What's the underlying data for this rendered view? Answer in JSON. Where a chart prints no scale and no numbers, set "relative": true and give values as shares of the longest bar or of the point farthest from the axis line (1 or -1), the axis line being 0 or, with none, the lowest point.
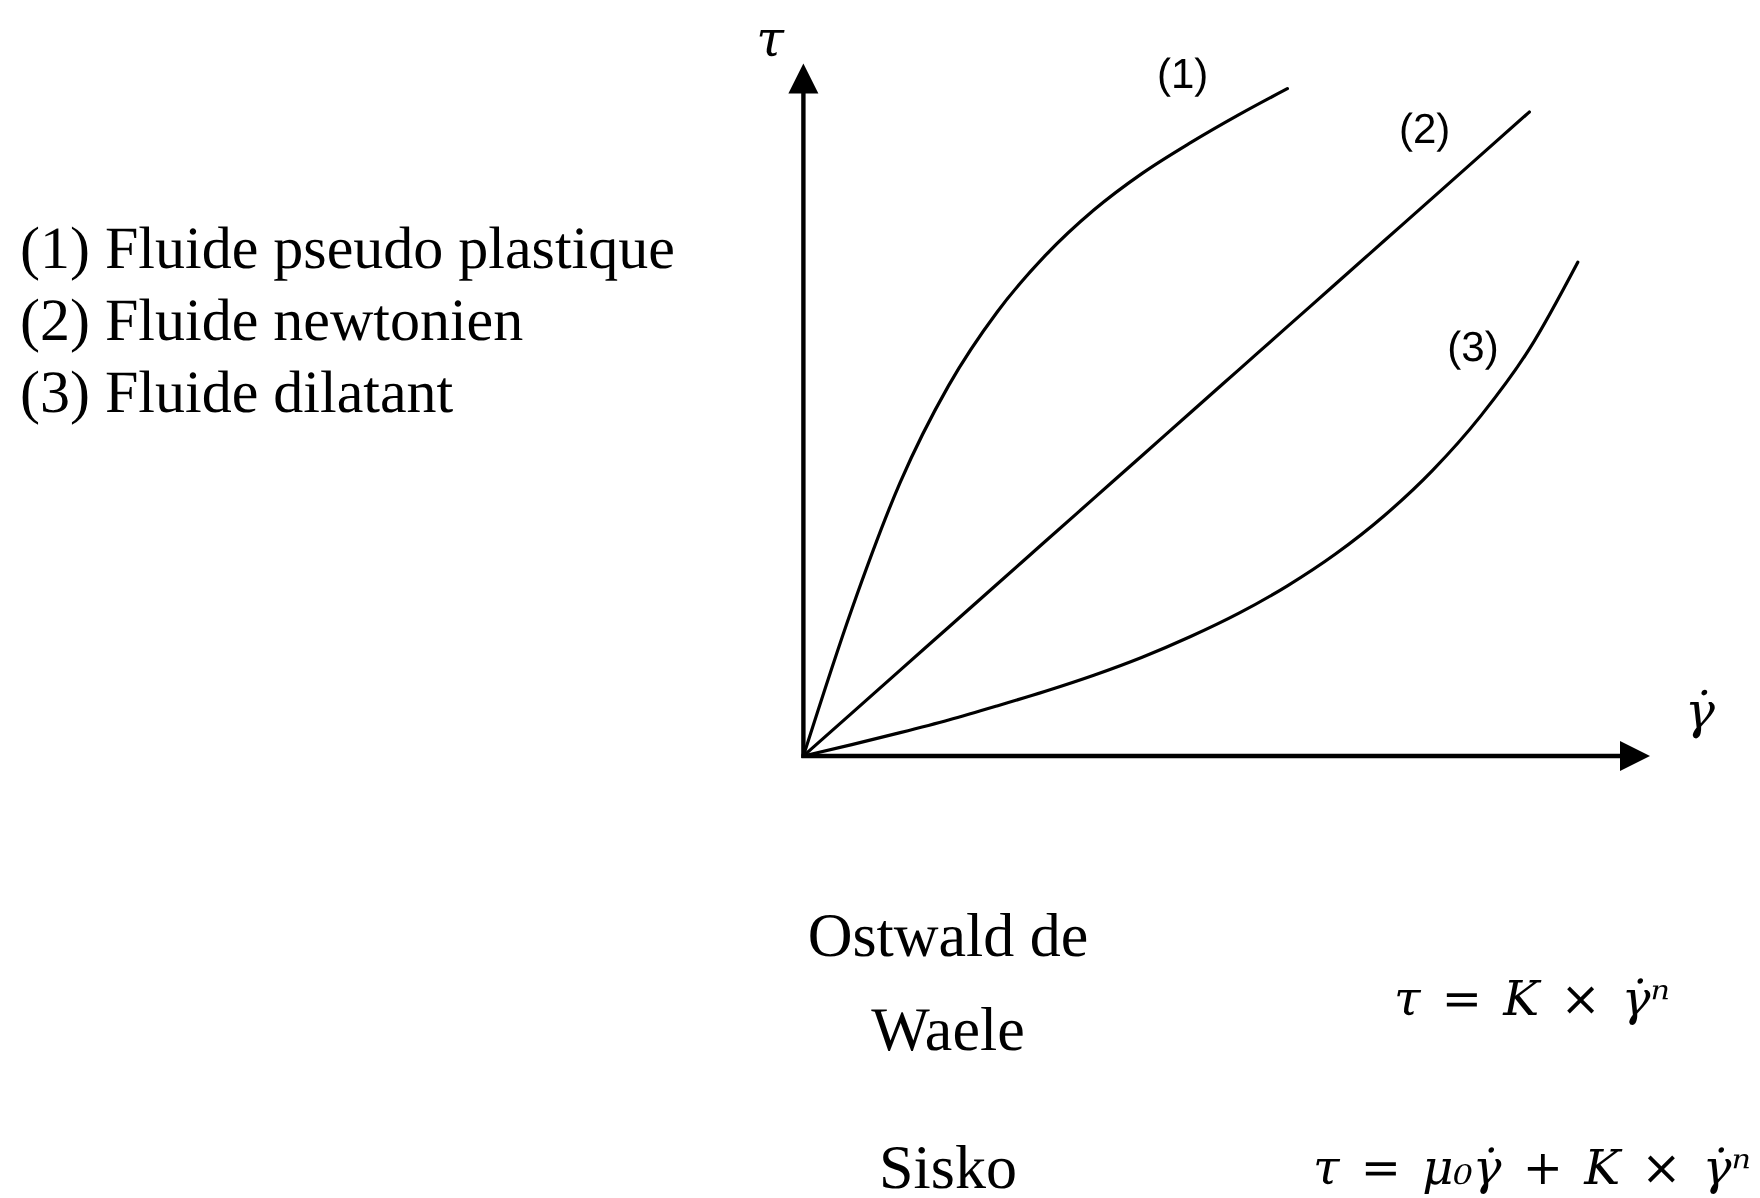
{
  "chart_data": {
    "type": "line",
    "relative": true,
    "xlabel": "γ̇",
    "ylabel": "τ",
    "categories": [
      null,
      null,
      null,
      null,
      null,
      null,
      null,
      null,
      null,
      null,
      null,
      null,
      null,
      null,
      null,
      null,
      null
    ],
    "series": [
      {
        "name": "(1)",
        "color": "#000000",
        "values": [
          0,
          0.22,
          0.41,
          0.555,
          0.665,
          0.75,
          0.818,
          0.873,
          0.919,
          0.961,
          1,
          null,
          null,
          null,
          null,
          null,
          null
        ]
      },
      {
        "name": "(2)",
        "color": "#000000",
        "values": [
          0,
          0.0643,
          0.1287,
          0.193,
          0.2573,
          0.3217,
          0.386,
          0.4503,
          0.5147,
          0.579,
          0.6433,
          0.7077,
          0.772,
          0.8363,
          0.9007,
          0.965,
          null
        ]
      },
      {
        "name": "(3)",
        "color": "#000000",
        "values": [
          0,
          0.017,
          0.035,
          0.054,
          0.075,
          0.097,
          0.121,
          0.148,
          0.179,
          0.214,
          0.255,
          0.303,
          0.36,
          0.428,
          0.51,
          0.61,
          0.74
        ]
      }
    ],
    "annotations": [
      "(1) Fluide pseudo plastique",
      "(2) Fluide newtonien",
      "(3) Fluide dilatant",
      "Ostwald de Waele",
      "τ = K × γ̇ⁿ",
      "Sisko",
      "τ = μ₀γ̇ + K × γ̇ⁿ"
    ]
  }
}
